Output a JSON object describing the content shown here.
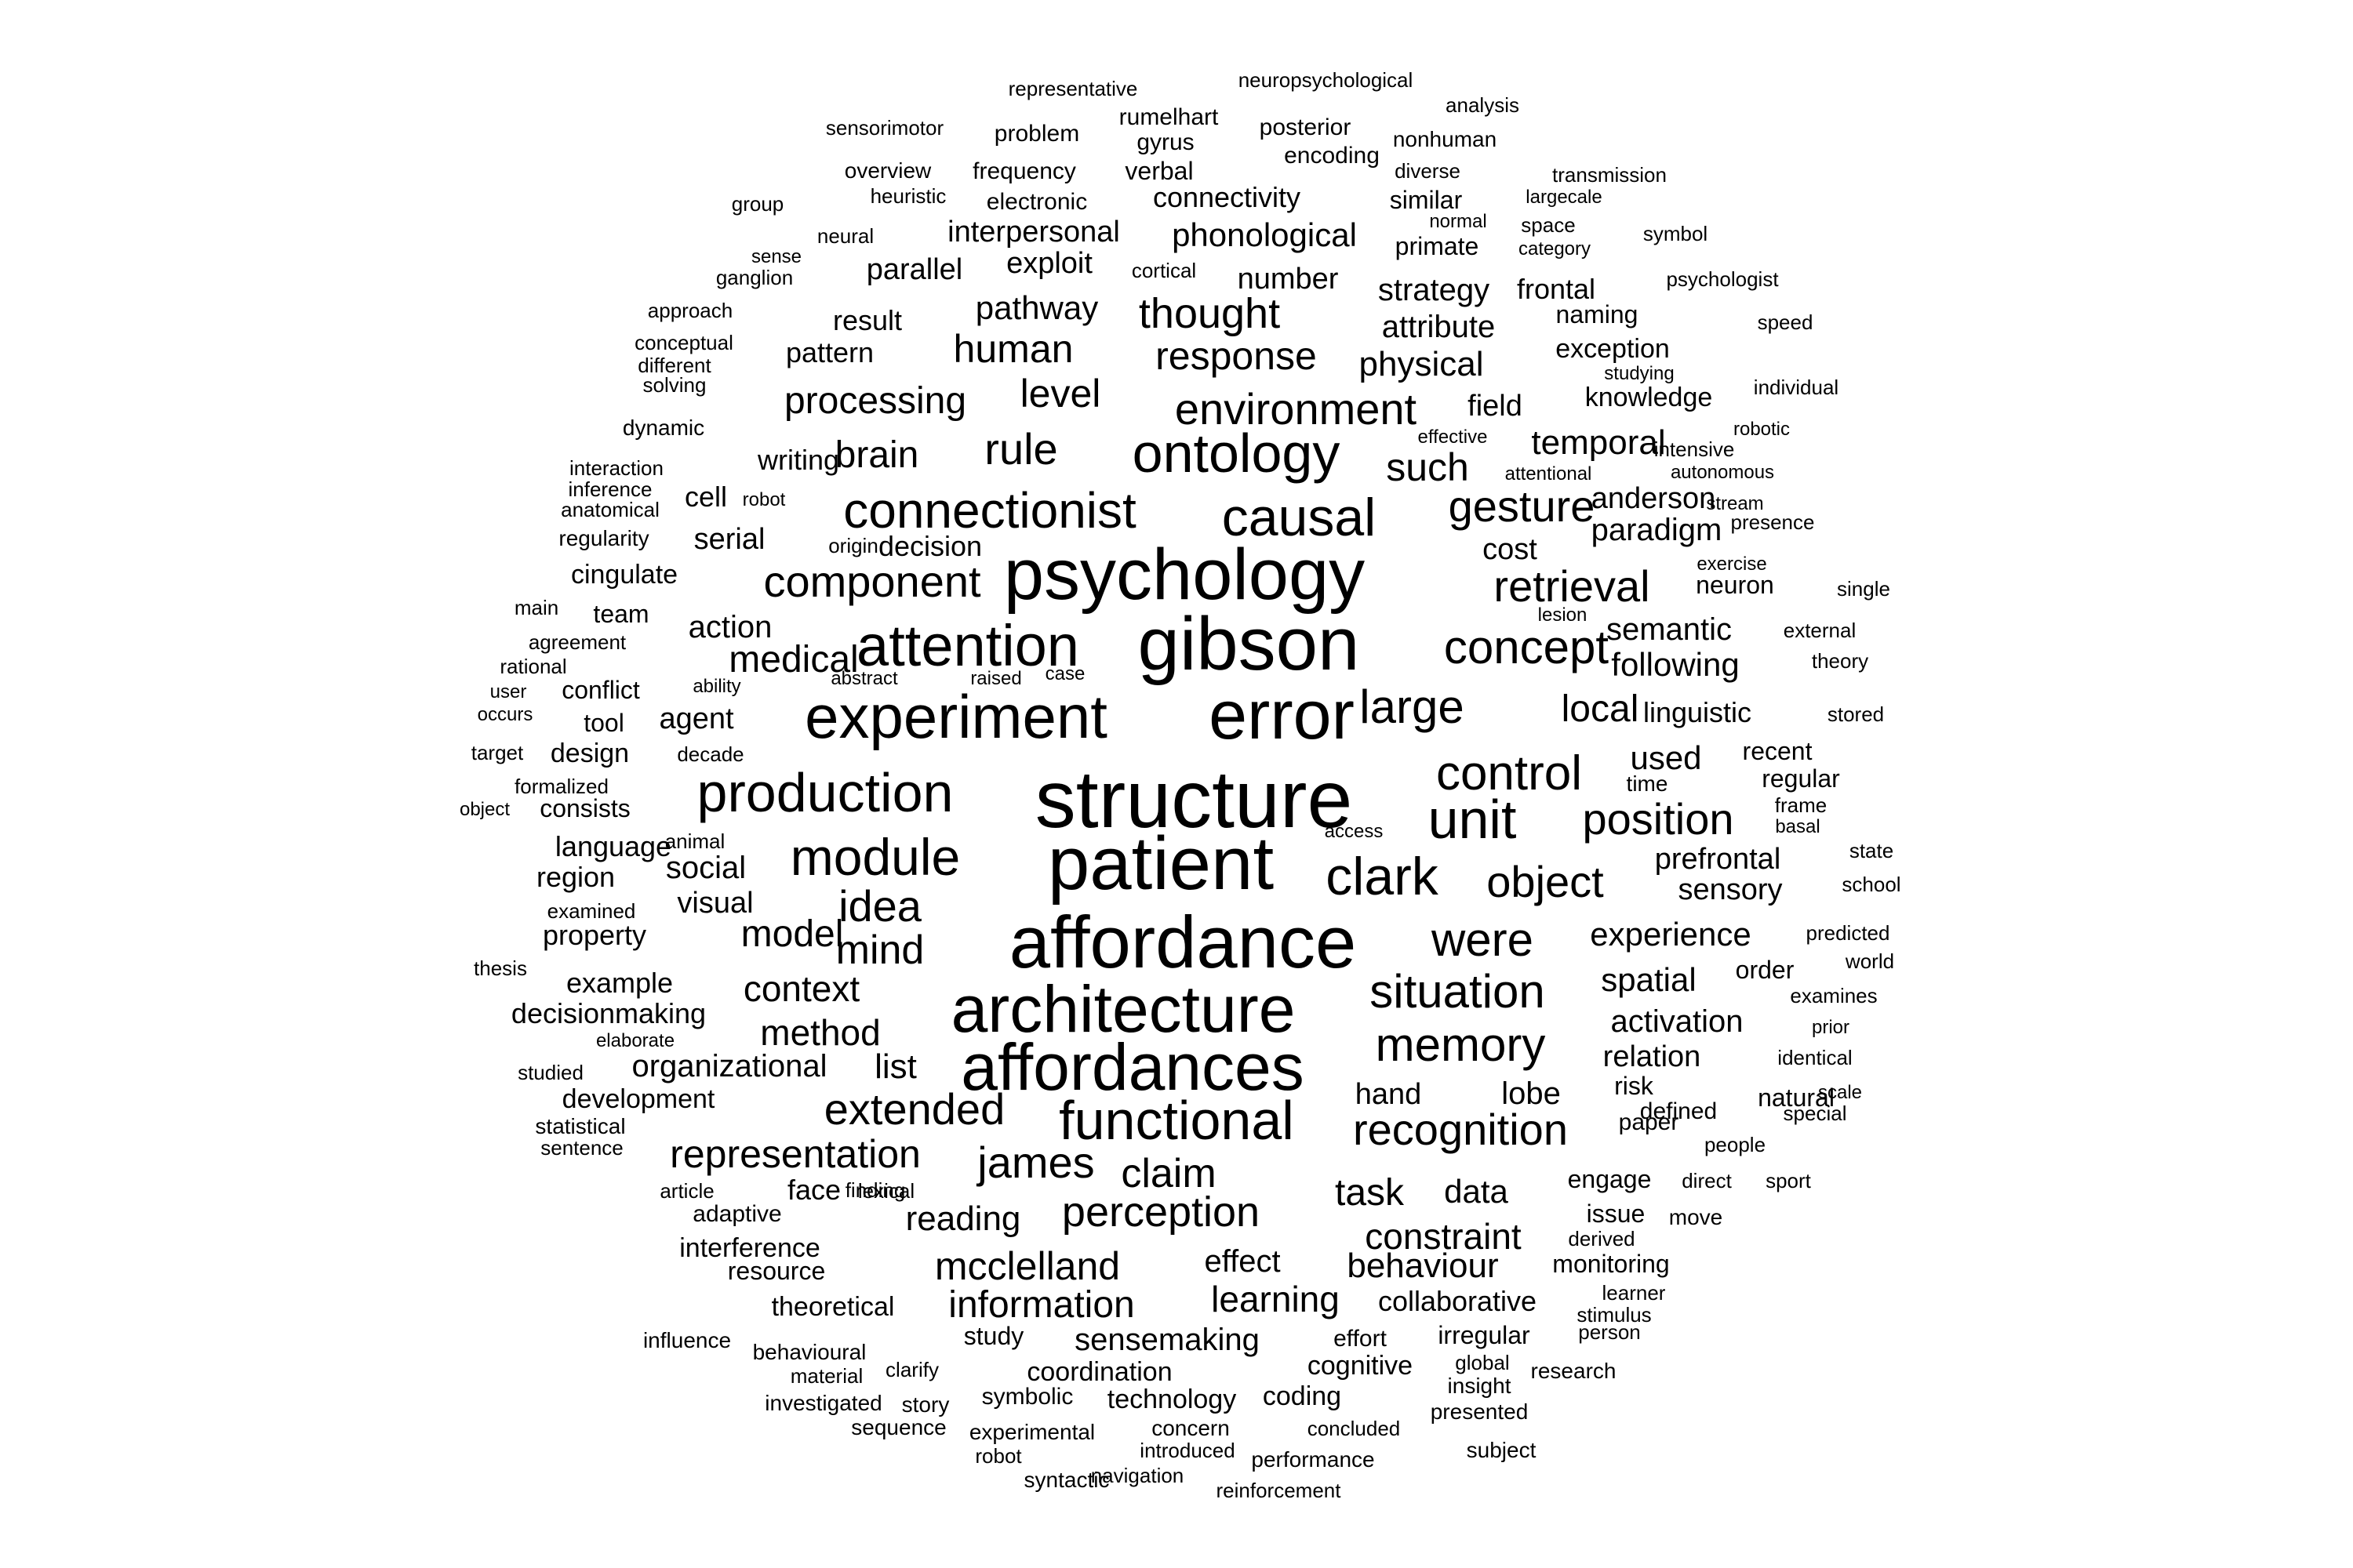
{
  "color": "#000000",
  "background": "#ffffff",
  "words": [
    "psychology",
    "gibson",
    "structure",
    "patient",
    "affordance",
    "architecture",
    "affordances",
    "error",
    "experiment",
    "attention",
    "connectionist",
    "ontology",
    "causal",
    "functional",
    "production",
    "unit",
    "clark",
    "module",
    "component",
    "retrieval",
    "concept",
    "control",
    "memory",
    "recognition",
    "situation",
    "large",
    "position",
    "object",
    "environment",
    "extended",
    "james",
    "perception",
    "were",
    "gesture",
    "idea",
    "mind",
    "representation",
    "mcclelland",
    "claim",
    "information",
    "rule",
    "processing",
    "response",
    "thought",
    "level",
    "human",
    "brain",
    "such",
    "medical",
    "local",
    "model",
    "context",
    "method",
    "learning",
    "behaviour",
    "constraint",
    "temporal",
    "semantic",
    "following",
    "used",
    "prefrontal",
    "experience",
    "spatial",
    "sensory",
    "task",
    "data",
    "activation",
    "relation",
    "organizational",
    "list",
    "reading",
    "effect",
    "hand",
    "lobe",
    "sensemaking",
    "physical",
    "attribute",
    "strategy",
    "number",
    "pathway",
    "interpersonal",
    "phonological",
    "connectivity",
    "exploit",
    "parallel",
    "result",
    "pattern",
    "writing",
    "decision",
    "serial",
    "action",
    "agent",
    "social",
    "visual",
    "cell",
    "anderson",
    "paradigm",
    "cost",
    "field",
    "knowledge",
    "exception",
    "naming",
    "frontal",
    "primate",
    "similar",
    "language",
    "region",
    "property",
    "example",
    "decisionmaking",
    "development",
    "interference",
    "resource",
    "theoretical",
    "study",
    "coordination",
    "technology",
    "symbolic",
    "coding",
    "cognitive",
    "irregular",
    "collaborative",
    "monitoring",
    "issue",
    "engage",
    "paper",
    "defined",
    "risk",
    "natural",
    "order",
    "linguistic",
    "recent",
    "regular",
    "neuron",
    "cingulate",
    "team",
    "conflict",
    "design",
    "consists",
    "tool",
    "face",
    "adaptive",
    "effort",
    "frequency",
    "electronic",
    "verbal",
    "gyrus",
    "rumelhart",
    "posterior",
    "encoding",
    "problem",
    "overview",
    "representative",
    "neuropsychological",
    "analysis",
    "nonhuman",
    "diverse",
    "transmission",
    "largecale",
    "space",
    "category",
    "normal",
    "symbol",
    "psychologist",
    "speed",
    "studying",
    "individual",
    "robotic",
    "intensive",
    "autonomous",
    "stream",
    "presence",
    "exercise",
    "single",
    "external",
    "theory",
    "stored",
    "frame",
    "basal",
    "state",
    "school",
    "predicted",
    "world",
    "examines",
    "prior",
    "identical",
    "scale",
    "special",
    "people",
    "sport",
    "direct",
    "move",
    "derived",
    "learner",
    "stimulus",
    "person",
    "research",
    "global",
    "insight",
    "presented",
    "subject",
    "concluded",
    "performance",
    "reinforcement",
    "concern",
    "introduced",
    "navigation",
    "syntactic",
    "robot",
    "experimental",
    "sequence",
    "story",
    "investigated",
    "clarify",
    "material",
    "behavioural",
    "finding",
    "influence",
    "lexical",
    "article",
    "statistical",
    "sentence",
    "studied",
    "elaborate",
    "thesis",
    "examined",
    "formalized",
    "object",
    "target",
    "occurs",
    "user",
    "rational",
    "agreement",
    "main",
    "regularity",
    "anatomical",
    "inference",
    "interaction",
    "dynamic",
    "solving",
    "different",
    "conceptual",
    "approach",
    "ganglion",
    "sense",
    "neural",
    "group",
    "heuristic",
    "sensorimotor",
    "cortical",
    "origin",
    "robot",
    "abstract",
    "raised",
    "case",
    "ability",
    "decade",
    "animal",
    "access",
    "time",
    "lesion",
    "attentional",
    "effective"
  ]
}
